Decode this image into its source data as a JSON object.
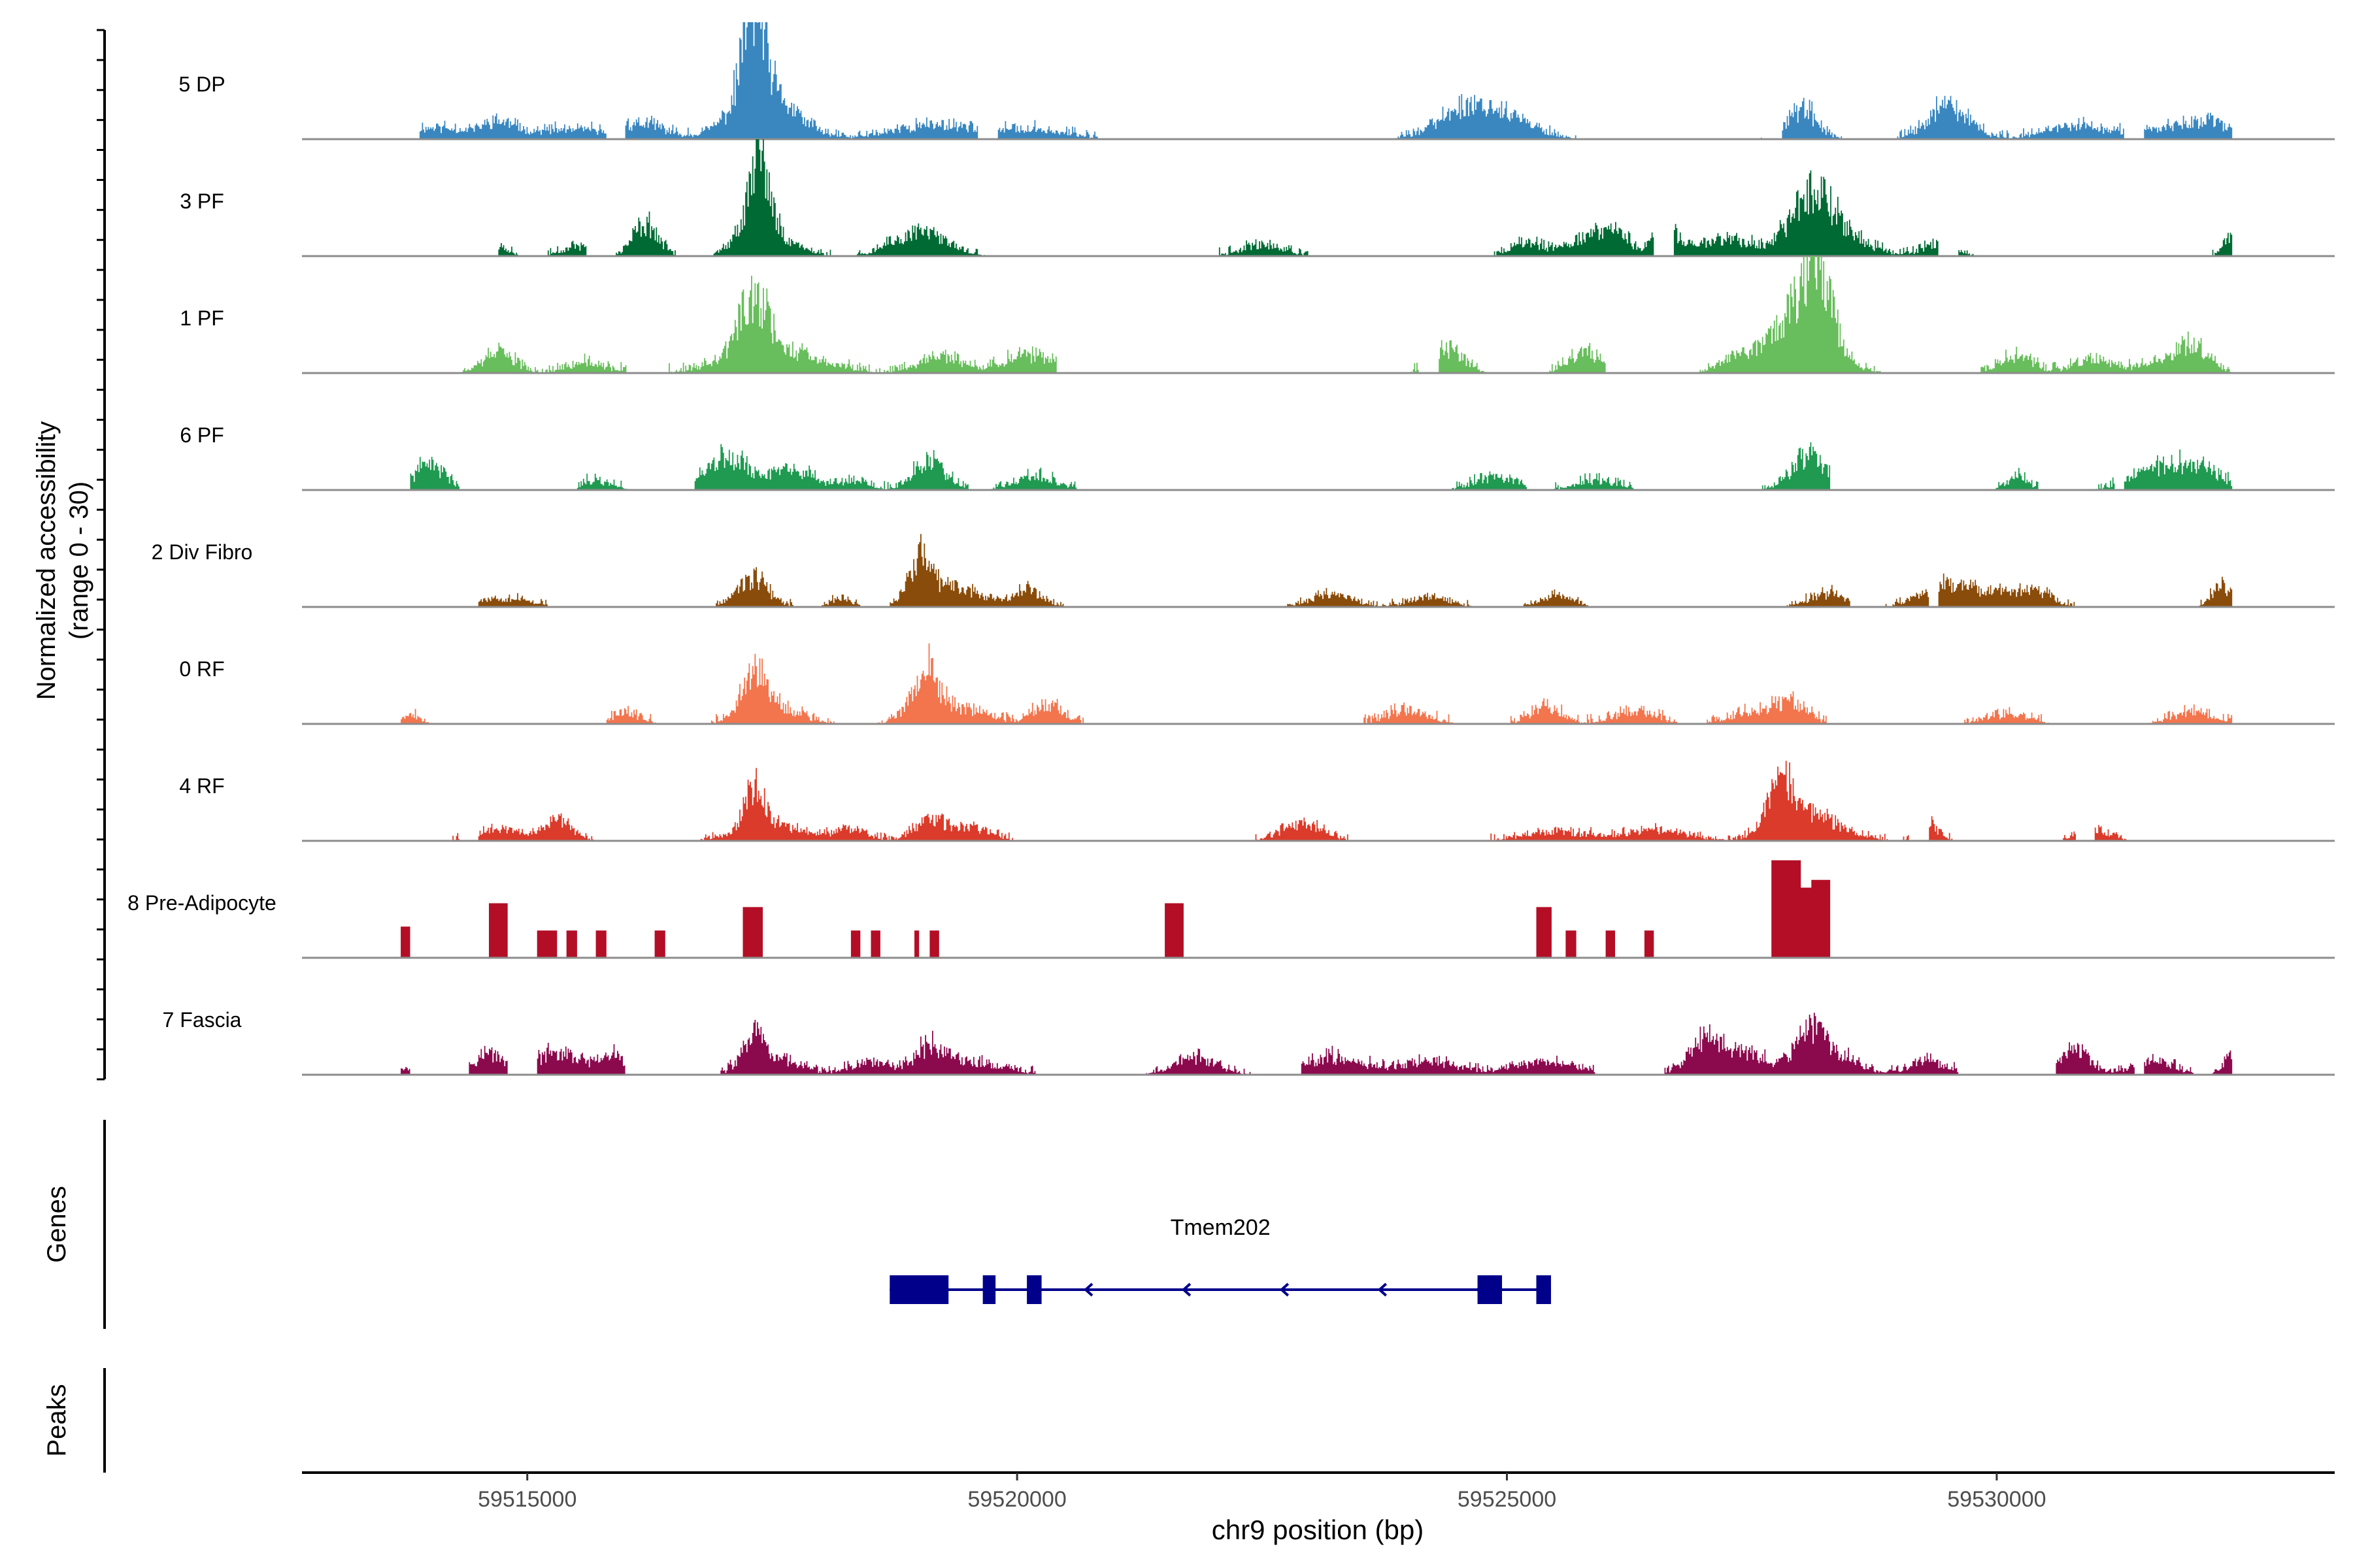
{
  "chart_data": {
    "type": "area",
    "title": "",
    "xlabel": "chr9 position (bp)",
    "ylabel_line1": "Normalized accessibility",
    "ylabel_line2": "(range 0 - 30)",
    "ylim": [
      0,
      30
    ],
    "xlim": [
      59512700,
      59533450
    ],
    "x_ticks": [
      59515000,
      59520000,
      59525000,
      59530000
    ],
    "x_tick_labels": [
      "59515000",
      "59520000",
      "59525000",
      "59530000"
    ],
    "genes_label": "Genes",
    "peaks_label": "Peaks",
    "series": [
      {
        "name": "5 DP",
        "color": "#3A87C0",
        "mode": "smooth",
        "start": 59513900,
        "end": 59532400,
        "gaps": [
          [
            59515800,
            59516000
          ],
          [
            59519600,
            59519800
          ],
          [
            59521800,
            59522000
          ],
          [
            59523100,
            59523300
          ],
          [
            59527600,
            59527800
          ],
          [
            59531300,
            59531500
          ]
        ],
        "peaks": [
          [
            59514000,
            400,
            2.5
          ],
          [
            59514700,
            150,
            3
          ],
          [
            59515400,
            500,
            2
          ],
          [
            59516200,
            200,
            3
          ],
          [
            59517300,
            100,
            27
          ],
          [
            59517400,
            300,
            12
          ],
          [
            59518900,
            300,
            2
          ],
          [
            59519400,
            300,
            2.5
          ],
          [
            59520200,
            300,
            2
          ],
          [
            59524500,
            250,
            5
          ],
          [
            59524900,
            300,
            6
          ],
          [
            59528000,
            150,
            7
          ],
          [
            59529500,
            200,
            8
          ],
          [
            59530800,
            300,
            3
          ],
          [
            59531800,
            300,
            2.5
          ],
          [
            59532200,
            200,
            3
          ]
        ],
        "noise": 2.2,
        "seed": 11
      },
      {
        "name": "3 PF",
        "color": "#006A34",
        "mode": "smooth",
        "start": 59514700,
        "end": 59532400,
        "gaps": [
          [
            59514900,
            59515200
          ],
          [
            59515600,
            59515900
          ],
          [
            59516600,
            59516900
          ],
          [
            59519700,
            59519800
          ],
          [
            59520300,
            59521800
          ],
          [
            59526500,
            59526700
          ],
          [
            59529400,
            59529600
          ],
          [
            59531100,
            59531300
          ]
        ],
        "peaks": [
          [
            59514700,
            100,
            2
          ],
          [
            59515500,
            150,
            2
          ],
          [
            59516200,
            120,
            8
          ],
          [
            59517350,
            100,
            18
          ],
          [
            59517400,
            250,
            7
          ],
          [
            59519000,
            250,
            6
          ],
          [
            59522500,
            200,
            2.5
          ],
          [
            59525200,
            150,
            3
          ],
          [
            59525800,
            200,
            4
          ],
          [
            59526100,
            150,
            5
          ],
          [
            59526600,
            100,
            9
          ],
          [
            59527200,
            300,
            4
          ],
          [
            59528100,
            200,
            12
          ],
          [
            59528300,
            300,
            6
          ],
          [
            59529400,
            150,
            3
          ],
          [
            59532400,
            80,
            5
          ]
        ],
        "noise": 2.0,
        "seed": 23
      },
      {
        "name": "1 PF",
        "color": "#68BD5C",
        "mode": "smooth",
        "start": 59514000,
        "end": 59532400,
        "gaps": [
          [
            59520400,
            59521100
          ],
          [
            59521200,
            59521500
          ],
          [
            59524100,
            59524300
          ],
          [
            59526000,
            59526200
          ],
          [
            59529600,
            59529800
          ]
        ],
        "peaks": [
          [
            59514700,
            150,
            5
          ],
          [
            59515600,
            200,
            2
          ],
          [
            59517300,
            150,
            14
          ],
          [
            59517500,
            400,
            6
          ],
          [
            59519200,
            200,
            4
          ],
          [
            59520100,
            250,
            4
          ],
          [
            59524400,
            150,
            6
          ],
          [
            59525800,
            150,
            5
          ],
          [
            59527300,
            150,
            3
          ],
          [
            59527700,
            150,
            4
          ],
          [
            59528150,
            150,
            22
          ],
          [
            59528000,
            300,
            10
          ],
          [
            59530200,
            150,
            4
          ],
          [
            59531000,
            200,
            3
          ],
          [
            59531700,
            200,
            2.5
          ],
          [
            59532000,
            150,
            6
          ]
        ],
        "noise": 2.4,
        "seed": 37
      },
      {
        "name": "6 PF",
        "color": "#1F9A50",
        "mode": "smooth",
        "start": 59513800,
        "end": 59532400,
        "gaps": [
          [
            59514300,
            59514500
          ],
          [
            59515100,
            59515500
          ],
          [
            59516100,
            59516700
          ],
          [
            59520600,
            59524400
          ],
          [
            59525200,
            59525400
          ],
          [
            59526300,
            59527400
          ],
          [
            59528300,
            59529800
          ],
          [
            59530500,
            59530700
          ],
          [
            59531200,
            59531300
          ]
        ],
        "peaks": [
          [
            59514000,
            150,
            6
          ],
          [
            59515700,
            150,
            2
          ],
          [
            59516900,
            150,
            3
          ],
          [
            59517100,
            200,
            6
          ],
          [
            59517700,
            200,
            5
          ],
          [
            59518300,
            150,
            2
          ],
          [
            59519100,
            150,
            7
          ],
          [
            59520200,
            200,
            3
          ],
          [
            59524900,
            200,
            3
          ],
          [
            59525900,
            200,
            2
          ],
          [
            59528000,
            150,
            5
          ],
          [
            59528200,
            150,
            5
          ],
          [
            59530200,
            100,
            3
          ],
          [
            59531500,
            200,
            4
          ],
          [
            59531900,
            200,
            5
          ],
          [
            59532200,
            150,
            3
          ]
        ],
        "noise": 2.2,
        "seed": 41
      },
      {
        "name": "2 Div Fibro",
        "color": "#8A4C0A",
        "mode": "smooth",
        "start": 59513700,
        "end": 59532400,
        "gaps": [
          [
            59513800,
            59514500
          ],
          [
            59515200,
            59515800
          ],
          [
            59516100,
            59516400
          ],
          [
            59518400,
            59518700
          ],
          [
            59520700,
            59522400
          ],
          [
            59526600,
            59526800
          ],
          [
            59527200,
            59527400
          ],
          [
            59528500,
            59528800
          ],
          [
            59529300,
            59529400
          ],
          [
            59531600,
            59531700
          ]
        ],
        "peaks": [
          [
            59514700,
            300,
            2
          ],
          [
            59517300,
            150,
            7
          ],
          [
            59518200,
            100,
            2
          ],
          [
            59519000,
            100,
            10
          ],
          [
            59519300,
            300,
            5
          ],
          [
            59520100,
            150,
            4
          ],
          [
            59523200,
            200,
            3
          ],
          [
            59524200,
            200,
            2
          ],
          [
            59525500,
            150,
            3
          ],
          [
            59528300,
            200,
            3
          ],
          [
            59529400,
            200,
            4
          ],
          [
            59529900,
            300,
            4
          ],
          [
            59530400,
            150,
            3
          ],
          [
            59532300,
            100,
            5
          ]
        ],
        "noise": 1.8,
        "seed": 53
      },
      {
        "name": "0 RF",
        "color": "#F2754E",
        "mode": "smooth",
        "start": 59513700,
        "end": 59532400,
        "gaps": [
          [
            59514300,
            59515800
          ],
          [
            59516500,
            59516700
          ],
          [
            59521300,
            59521600
          ],
          [
            59528600,
            59528700
          ],
          [
            59529200,
            59529400
          ],
          [
            59531100,
            59531500
          ]
        ],
        "peaks": [
          [
            59513800,
            100,
            2
          ],
          [
            59516000,
            150,
            2
          ],
          [
            59517300,
            120,
            10
          ],
          [
            59517500,
            250,
            4
          ],
          [
            59519050,
            120,
            11
          ],
          [
            59519300,
            300,
            4
          ],
          [
            59520300,
            150,
            4
          ],
          [
            59524000,
            200,
            3
          ],
          [
            59525400,
            150,
            4
          ],
          [
            59526300,
            200,
            3
          ],
          [
            59527500,
            200,
            3
          ],
          [
            59527900,
            150,
            5
          ],
          [
            59530100,
            200,
            2
          ],
          [
            59532000,
            200,
            2.5
          ]
        ],
        "noise": 2.4,
        "seed": 67
      },
      {
        "name": "4 RF",
        "color": "#DB3B2A",
        "mode": "smooth",
        "start": 59513700,
        "end": 59532400,
        "gaps": [
          [
            59514300,
            59514500
          ],
          [
            59520400,
            59520600
          ],
          [
            59521200,
            59521400
          ],
          [
            59523600,
            59524300
          ],
          [
            59529100,
            59529300
          ],
          [
            59530800,
            59531000
          ]
        ],
        "peaks": [
          [
            59514700,
            200,
            3
          ],
          [
            59515300,
            150,
            5
          ],
          [
            59517300,
            100,
            10
          ],
          [
            59517500,
            300,
            4
          ],
          [
            59518300,
            150,
            3
          ],
          [
            59519100,
            150,
            5
          ],
          [
            59519500,
            200,
            3
          ],
          [
            59522900,
            200,
            4
          ],
          [
            59525500,
            300,
            2
          ],
          [
            59526500,
            300,
            2.5
          ],
          [
            59527800,
            150,
            11
          ],
          [
            59528100,
            300,
            6
          ],
          [
            59529300,
            100,
            4
          ],
          [
            59531000,
            150,
            2.5
          ]
        ],
        "noise": 1.8,
        "seed": 79
      },
      {
        "name": "8 Pre-Adipocyte",
        "color": "#B30E26",
        "mode": "block",
        "blocks": [
          [
            59513700,
            59513800,
            8
          ],
          [
            59514600,
            59514800,
            14
          ],
          [
            59515100,
            59515300,
            7
          ],
          [
            59515400,
            59515500,
            7
          ],
          [
            59515700,
            59515800,
            7
          ],
          [
            59516300,
            59516400,
            7
          ],
          [
            59517200,
            59517400,
            13
          ],
          [
            59518300,
            59518400,
            7
          ],
          [
            59518500,
            59518600,
            7
          ],
          [
            59518950,
            59519000,
            7
          ],
          [
            59519100,
            59519200,
            7
          ],
          [
            59521500,
            59521700,
            14
          ],
          [
            59525300,
            59525450,
            13
          ],
          [
            59525600,
            59525700,
            7
          ],
          [
            59526000,
            59526100,
            7
          ],
          [
            59526400,
            59526500,
            7
          ],
          [
            59527700,
            59528000,
            25
          ],
          [
            59528000,
            59528100,
            18
          ],
          [
            59528100,
            59528200,
            20
          ],
          [
            59528200,
            59528300,
            20
          ]
        ],
        "noise": 0,
        "seed": 0
      },
      {
        "name": "7 Fascia",
        "color": "#8B0A4E",
        "mode": "smooth",
        "start": 59513700,
        "end": 59532400,
        "gaps": [
          [
            59513800,
            59514400
          ],
          [
            59514800,
            59515100
          ],
          [
            59516000,
            59516800
          ],
          [
            59520200,
            59521300
          ],
          [
            59522400,
            59522900
          ],
          [
            59525900,
            59526600
          ],
          [
            59529600,
            59530600
          ],
          [
            59531400,
            59531500
          ],
          [
            59532000,
            59532200
          ]
        ],
        "peaks": [
          [
            59513700,
            80,
            2
          ],
          [
            59514600,
            150,
            5
          ],
          [
            59515300,
            250,
            5
          ],
          [
            59515900,
            150,
            4
          ],
          [
            59517300,
            120,
            9
          ],
          [
            59517600,
            200,
            3
          ],
          [
            59518500,
            200,
            3
          ],
          [
            59519100,
            150,
            6
          ],
          [
            59519500,
            300,
            3
          ],
          [
            59521800,
            200,
            4
          ],
          [
            59523200,
            300,
            4
          ],
          [
            59524200,
            300,
            3
          ],
          [
            59525400,
            300,
            3
          ],
          [
            59527000,
            150,
            7
          ],
          [
            59527400,
            300,
            5
          ],
          [
            59528100,
            150,
            10
          ],
          [
            59528400,
            200,
            4
          ],
          [
            59529300,
            200,
            3
          ],
          [
            59530800,
            150,
            6
          ],
          [
            59531600,
            200,
            3
          ],
          [
            59532400,
            80,
            5
          ]
        ],
        "noise": 2.0,
        "seed": 97
      }
    ],
    "gene": {
      "name": "Tmem202",
      "color": "#00008B",
      "start": 59518700,
      "end": 59525450,
      "strand": "-",
      "exons": [
        [
          59518700,
          59519300
        ],
        [
          59519650,
          59519780
        ],
        [
          59520100,
          59520250
        ],
        [
          59524700,
          59524950
        ],
        [
          59525300,
          59525450
        ]
      ],
      "arrows": [
        59520700,
        59521700,
        59522700,
        59523700,
        59524700
      ]
    }
  }
}
